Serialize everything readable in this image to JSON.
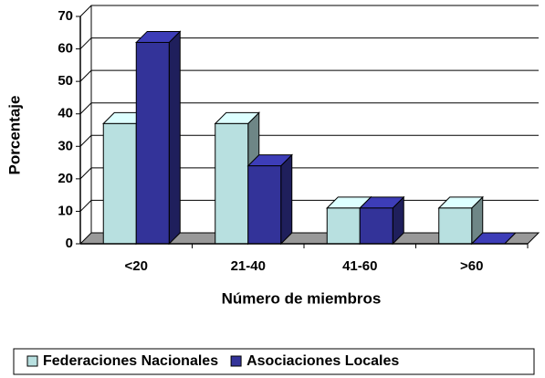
{
  "chart_data": {
    "type": "bar3d",
    "x_label": "Número de miembros",
    "y_label": "Porcentaje",
    "categories": [
      "<20",
      "21-40",
      "41-60",
      ">60"
    ],
    "series": [
      {
        "name": "Federaciones Nacionales",
        "color": "#b8e0e0",
        "values": [
          37,
          37,
          11,
          11
        ]
      },
      {
        "name": "Asociaciones Locales",
        "color": "#333399",
        "values": [
          62,
          24,
          11,
          0
        ]
      }
    ],
    "ylim": [
      0,
      70
    ],
    "yticks": [
      0,
      10,
      20,
      30,
      40,
      50,
      60,
      70
    ],
    "grid": true,
    "legend": "bottom"
  }
}
